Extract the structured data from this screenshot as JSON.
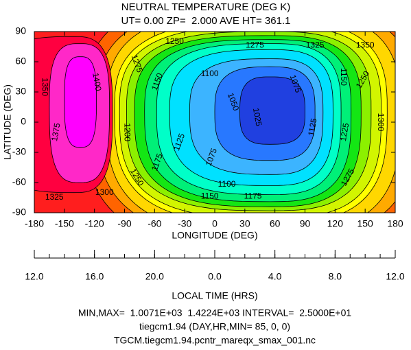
{
  "chart_data": {
    "type": "contour",
    "title": "NEUTRAL TEMPERATURE (DEG K)",
    "subtitle": "UT= 0.00 ZP=  2.000 AVE HT= 361.1",
    "x_label": "LONGITUDE (DEG)",
    "y_label": "LATITUDE (DEG)",
    "xlim": [
      -180,
      180
    ],
    "ylim": [
      -90,
      90
    ],
    "xticks": [
      -180,
      -150,
      -120,
      -90,
      -60,
      -30,
      0,
      30,
      60,
      90,
      120,
      150,
      180
    ],
    "yticks": [
      -90,
      -60,
      -30,
      0,
      30,
      60,
      90
    ],
    "levels": [
      1025,
      1050,
      1075,
      1100,
      1125,
      1150,
      1175,
      1200,
      1225,
      1250,
      1275,
      1300,
      1325,
      1350,
      1375,
      1400
    ],
    "colors": [
      "#2040e0",
      "#2878ff",
      "#3cb4ff",
      "#00e1ff",
      "#00ffc8",
      "#00f078",
      "#14e614",
      "#8cf000",
      "#d2f500",
      "#ffff00",
      "#ffd700",
      "#ffaa00",
      "#ff6400",
      "#ff1e1e",
      "#ff0040",
      "#ff28c8",
      "#ff00ff"
    ],
    "x2_label": "LOCAL TIME (HRS)",
    "x2ticks": [
      {
        "value": -180,
        "label": "12.0"
      },
      {
        "value": -120,
        "label": "16.0"
      },
      {
        "value": -60,
        "label": "20.0"
      },
      {
        "value": 0,
        "label": "0.0"
      },
      {
        "value": 60,
        "label": "4.0"
      },
      {
        "value": 120,
        "label": "8.0"
      },
      {
        "value": 180,
        "label": "12.0"
      }
    ],
    "x2ticks_minor": [
      -180,
      -165,
      -150,
      -135,
      -120,
      -105,
      -90,
      -75,
      -60,
      -45,
      -30,
      -15,
      0,
      15,
      30,
      45,
      60,
      75,
      90,
      105,
      120,
      135,
      150,
      165,
      180
    ],
    "notes": [
      "MIN,MAX=  1.0071E+03  1.4224E+03 INTERVAL=  2.5000E+01",
      "tiegcm1.94 (DAY,HR,MIN= 85, 0, 0)",
      "TGCM.tiegcm1.94.pcntr_mareqx_smax_001.nc"
    ]
  }
}
